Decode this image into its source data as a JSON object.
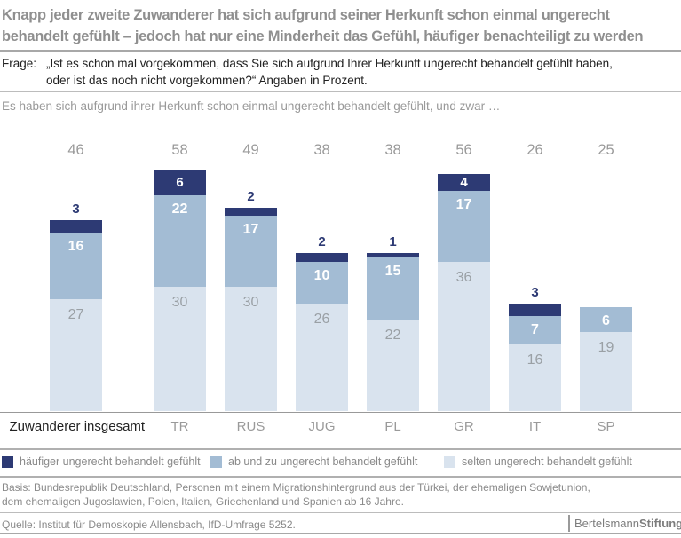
{
  "title": {
    "line1": "Knapp jeder zweite Zuwanderer hat sich aufgrund seiner Herkunft schon einmal ungerecht",
    "line2": "behandelt gefühlt – jedoch hat nur eine Minderheit das Gefühl, häufiger benachteiligt zu werden"
  },
  "question": {
    "label": "Frage:",
    "line1": "„Ist es schon mal vorgekommen, dass Sie sich aufgrund Ihrer Herkunft ungerecht behandelt gefühlt haben,",
    "line2": "oder ist das noch nicht vorgekommen?“ Angaben in Prozent."
  },
  "subtitle": "Es haben sich aufgrund ihrer Herkunft schon einmal ungerecht behandelt gefühlt, und zwar …",
  "chart_data": {
    "type": "bar",
    "stacked": true,
    "unit": "Prozent",
    "grid": false,
    "legend_position": "bottom",
    "ylim": [
      0,
      60
    ],
    "categories": [
      "Zuwanderer insgesamt",
      "TR",
      "RUS",
      "JUG",
      "PL",
      "GR",
      "IT",
      "SP"
    ],
    "totals": [
      46,
      58,
      49,
      38,
      38,
      56,
      26,
      25
    ],
    "series": [
      {
        "name": "häufiger ungerecht behandelt gefühlt",
        "color": "#2d3a74",
        "values": [
          3,
          6,
          2,
          2,
          1,
          4,
          3,
          0
        ]
      },
      {
        "name": "ab und zu ungerecht behandelt gefühlt",
        "color": "#a3bcd4",
        "values": [
          16,
          22,
          17,
          10,
          15,
          17,
          7,
          6
        ]
      },
      {
        "name": "selten ungerecht behandelt gefühlt",
        "color": "#d9e3ee",
        "values": [
          27,
          30,
          30,
          26,
          22,
          36,
          16,
          19
        ]
      }
    ]
  },
  "footer": {
    "basis_line1": "Basis: Bundesrepublik Deutschland, Personen mit einem Migrationshintergrund aus der Türkei, der ehemaligen Sowjetunion,",
    "basis_line2": "dem ehemaligen Jugoslawien, Polen, Italien, Griechenland und Spanien ab 16 Jahre.",
    "source": "Quelle: Institut für Demoskopie Allensbach, IfD-Umfrage 5252.",
    "logo_normal": "Bertelsmann",
    "logo_bold": "Stiftung"
  },
  "colors": {
    "haeufiger": "#2d3a74",
    "ab_und_zu": "#a3bcd4",
    "selten": "#d9e3ee",
    "title_gray": "#8f8f8f",
    "text_dark": "#212121",
    "muted_gray": "#9a9a9a",
    "divider": "#b0b0b0"
  }
}
